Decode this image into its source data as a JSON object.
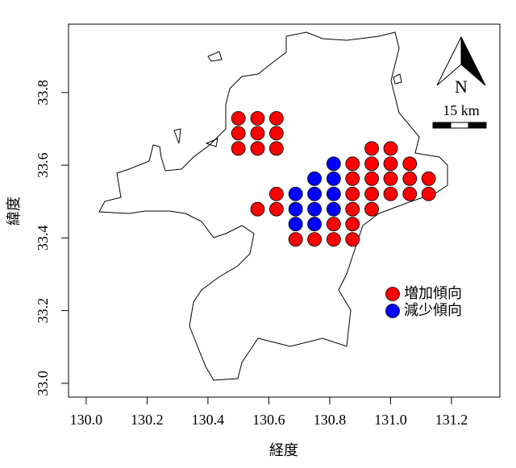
{
  "chart_data": {
    "type": "scatter",
    "xlabel": "経度",
    "ylabel": "緯度",
    "xlim": [
      129.942,
      131.359
    ],
    "ylim": [
      32.962,
      33.988
    ],
    "xticks": [
      {
        "value": 130.0,
        "label": "130.0"
      },
      130.2,
      130.4,
      130.6,
      130.8,
      {
        "value": 131.0,
        "label": "131.0"
      },
      131.2
    ],
    "yticks": [
      {
        "value": 33.0,
        "label": "33.0"
      },
      33.2,
      33.4,
      33.6,
      33.8
    ],
    "legend": "right",
    "north_label": "N",
    "scale_label": "15 km",
    "series": [
      {
        "name": "増加傾向",
        "color": "#ff0000",
        "x": [
          130.5,
          130.563,
          130.625,
          130.5,
          130.563,
          130.625,
          130.5,
          130.563,
          130.625,
          130.938,
          131.0,
          130.875,
          130.938,
          131.0,
          131.063,
          130.875,
          130.938,
          131.0,
          131.063,
          131.125,
          130.625,
          130.875,
          130.938,
          131.0,
          131.063,
          131.125,
          130.563,
          130.625,
          130.875,
          130.938,
          130.813,
          130.875,
          130.688,
          130.75,
          130.813,
          130.875
        ],
        "y": [
          33.729,
          33.729,
          33.729,
          33.688,
          33.688,
          33.688,
          33.646,
          33.646,
          33.646,
          33.646,
          33.646,
          33.604,
          33.604,
          33.604,
          33.604,
          33.563,
          33.563,
          33.563,
          33.563,
          33.563,
          33.521,
          33.521,
          33.521,
          33.521,
          33.521,
          33.521,
          33.479,
          33.479,
          33.479,
          33.479,
          33.438,
          33.438,
          33.396,
          33.396,
          33.396,
          33.396
        ]
      },
      {
        "name": "減少傾向",
        "color": "#0000ff",
        "x": [
          130.813,
          130.75,
          130.813,
          130.688,
          130.75,
          130.813,
          130.688,
          130.75,
          130.813,
          130.688,
          130.75
        ],
        "y": [
          33.604,
          33.563,
          33.563,
          33.521,
          33.521,
          33.521,
          33.479,
          33.479,
          33.479,
          33.438,
          33.438
        ]
      }
    ]
  }
}
